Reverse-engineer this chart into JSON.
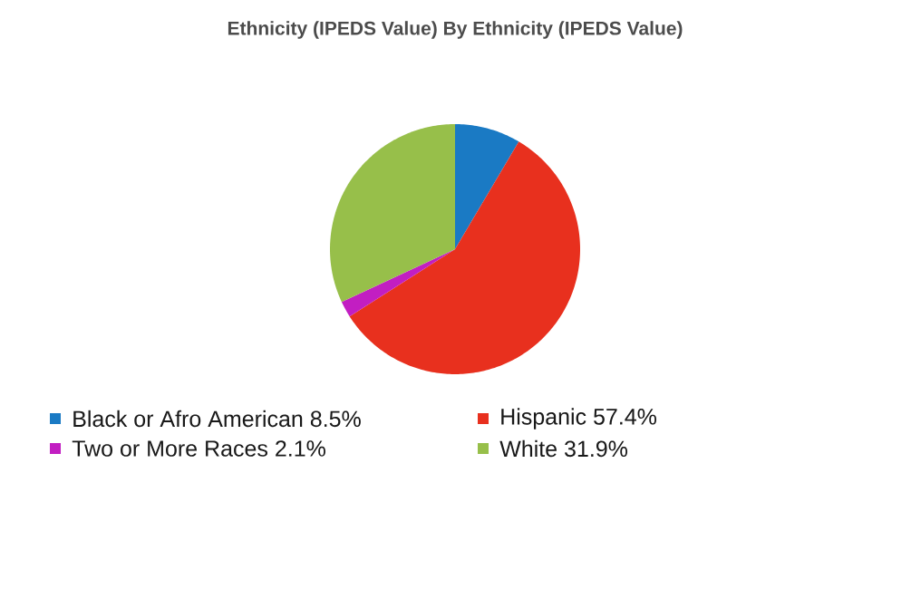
{
  "chart_data": {
    "type": "pie",
    "title": "Ethnicity (IPEDS Value) By Ethnicity (IPEDS Value)",
    "categories": [
      "Black or Afro American",
      "Hispanic",
      "Two or More Races",
      "White"
    ],
    "values": [
      8.5,
      57.4,
      2.1,
      31.9
    ],
    "value_labels": [
      "8.5%",
      "57.4%",
      "2.1%",
      "31.9%"
    ],
    "colors": [
      "#1a7ac4",
      "#e8301e",
      "#c21ec2",
      "#97bf4a"
    ],
    "legend": "bottom"
  }
}
